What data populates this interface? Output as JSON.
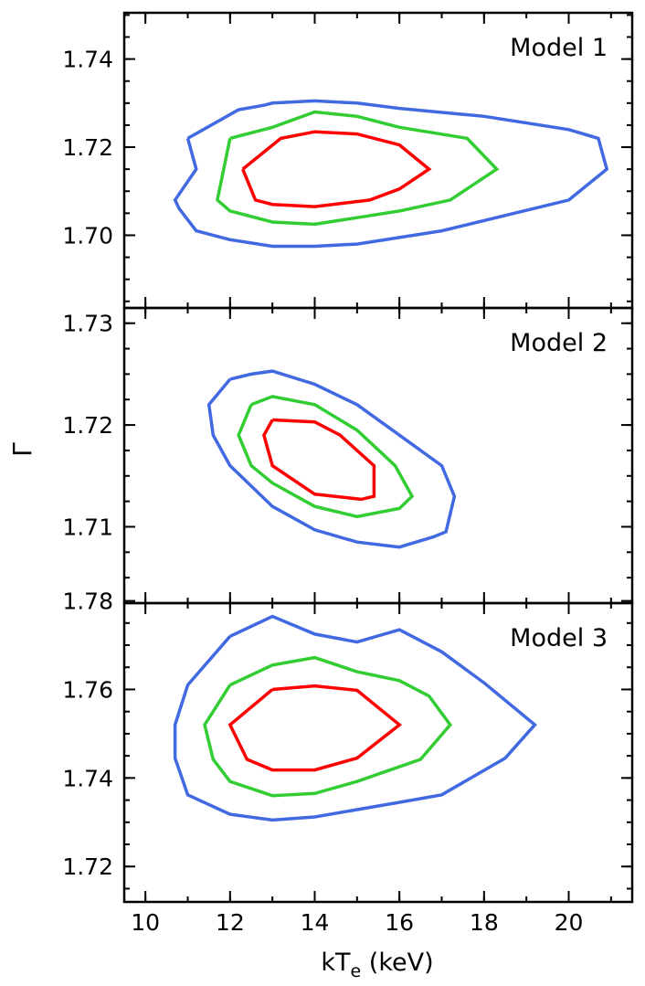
{
  "figure": {
    "xlabel": "kT",
    "xlabel_sub": "e",
    "xlabel_unit": " (keV)",
    "ylabel": "Γ"
  },
  "chart_data": [
    {
      "type": "line",
      "annotation": "Model 1",
      "xlim": [
        9.5,
        21.5
      ],
      "ylim": [
        1.6835,
        1.7505
      ],
      "xticks": [
        10,
        12,
        14,
        16,
        18,
        20
      ],
      "xtick_labels": [],
      "yticks": [
        1.7,
        1.72,
        1.74
      ],
      "ytick_labels": [
        "1.70",
        "1.72",
        "1.74"
      ],
      "minor_xstep": 1,
      "minor_ystep": 0.005,
      "series": [
        {
          "color": "#4169e1",
          "points": [
            [
              11.0,
              1.722
            ],
            [
              12.2,
              1.7285
            ],
            [
              12.8,
              1.7295
            ],
            [
              13.0,
              1.73
            ],
            [
              14.0,
              1.7305
            ],
            [
              15.0,
              1.73
            ],
            [
              16.0,
              1.7288
            ],
            [
              18.0,
              1.727
            ],
            [
              20.0,
              1.724
            ],
            [
              20.7,
              1.722
            ],
            [
              20.9,
              1.715
            ],
            [
              20.0,
              1.708
            ],
            [
              17.0,
              1.701
            ],
            [
              16.0,
              1.6995
            ],
            [
              15.0,
              1.698
            ],
            [
              14.0,
              1.6975
            ],
            [
              13.0,
              1.6975
            ],
            [
              12.0,
              1.699
            ],
            [
              11.2,
              1.701
            ],
            [
              10.8,
              1.706
            ],
            [
              10.7,
              1.708
            ],
            [
              11.2,
              1.715
            ],
            [
              11.0,
              1.722
            ]
          ]
        },
        {
          "color": "#32cd32",
          "points": [
            [
              12.0,
              1.722
            ],
            [
              13.0,
              1.7245
            ],
            [
              14.0,
              1.728
            ],
            [
              15.0,
              1.727
            ],
            [
              16.0,
              1.7245
            ],
            [
              17.6,
              1.722
            ],
            [
              18.3,
              1.715
            ],
            [
              17.2,
              1.708
            ],
            [
              16.0,
              1.7055
            ],
            [
              15.0,
              1.704
            ],
            [
              14.0,
              1.7025
            ],
            [
              13.0,
              1.703
            ],
            [
              12.0,
              1.7055
            ],
            [
              11.7,
              1.708
            ],
            [
              12.0,
              1.722
            ]
          ]
        },
        {
          "color": "#ff0000",
          "points": [
            [
              12.3,
              1.715
            ],
            [
              13.2,
              1.722
            ],
            [
              14.0,
              1.7235
            ],
            [
              15.0,
              1.723
            ],
            [
              16.0,
              1.7205
            ],
            [
              16.7,
              1.715
            ],
            [
              16.0,
              1.7105
            ],
            [
              15.3,
              1.708
            ],
            [
              14.0,
              1.7065
            ],
            [
              13.0,
              1.707
            ],
            [
              12.6,
              1.708
            ],
            [
              12.3,
              1.715
            ]
          ]
        }
      ]
    },
    {
      "type": "line",
      "annotation": "Model 2",
      "xlim": [
        9.5,
        21.5
      ],
      "ylim": [
        1.7025,
        1.7315
      ],
      "xticks": [
        10,
        12,
        14,
        16,
        18,
        20
      ],
      "xtick_labels": [],
      "yticks": [
        1.71,
        1.72,
        1.73
      ],
      "ytick_labels": [
        "1.71",
        "1.72",
        "1.73"
      ],
      "minor_xstep": 1,
      "minor_ystep": 0.0025,
      "series": [
        {
          "color": "#4169e1",
          "points": [
            [
              12.0,
              1.7245
            ],
            [
              12.5,
              1.725
            ],
            [
              13.0,
              1.7253
            ],
            [
              14.0,
              1.724
            ],
            [
              15.0,
              1.722
            ],
            [
              16.0,
              1.719
            ],
            [
              17.0,
              1.716
            ],
            [
              17.3,
              1.713
            ],
            [
              17.1,
              1.7095
            ],
            [
              16.8,
              1.709
            ],
            [
              16.0,
              1.708
            ],
            [
              15.0,
              1.7085
            ],
            [
              14.0,
              1.7097
            ],
            [
              13.0,
              1.712
            ],
            [
              12.0,
              1.716
            ],
            [
              11.6,
              1.719
            ],
            [
              11.5,
              1.722
            ],
            [
              12.0,
              1.7245
            ]
          ]
        },
        {
          "color": "#32cd32",
          "points": [
            [
              12.5,
              1.722
            ],
            [
              13.0,
              1.7228
            ],
            [
              14.0,
              1.722
            ],
            [
              15.0,
              1.7195
            ],
            [
              15.9,
              1.716
            ],
            [
              16.3,
              1.713
            ],
            [
              16.0,
              1.7118
            ],
            [
              15.0,
              1.711
            ],
            [
              14.0,
              1.712
            ],
            [
              13.0,
              1.7143
            ],
            [
              12.5,
              1.716
            ],
            [
              12.2,
              1.719
            ],
            [
              12.5,
              1.722
            ]
          ]
        },
        {
          "color": "#ff0000",
          "points": [
            [
              13.0,
              1.7205
            ],
            [
              14.0,
              1.7203
            ],
            [
              14.6,
              1.719
            ],
            [
              15.0,
              1.7175
            ],
            [
              15.4,
              1.716
            ],
            [
              15.4,
              1.713
            ],
            [
              15.1,
              1.7127
            ],
            [
              14.0,
              1.7132
            ],
            [
              13.0,
              1.716
            ],
            [
              12.9,
              1.7175
            ],
            [
              12.8,
              1.719
            ],
            [
              13.0,
              1.7205
            ]
          ]
        }
      ]
    },
    {
      "type": "line",
      "annotation": "Model 3",
      "xlim": [
        9.5,
        21.5
      ],
      "ylim": [
        1.712,
        1.7795
      ],
      "xticks": [
        10,
        12,
        14,
        16,
        18,
        20
      ],
      "xtick_labels": [
        "10",
        "12",
        "14",
        "16",
        "18",
        "20"
      ],
      "yticks": [
        1.72,
        1.74,
        1.76,
        1.78
      ],
      "ytick_labels": [
        "1.72",
        "1.74",
        "1.76",
        "1.78"
      ],
      "minor_xstep": 1,
      "minor_ystep": 0.005,
      "series": [
        {
          "color": "#4169e1",
          "points": [
            [
              12.0,
              1.772
            ],
            [
              13.0,
              1.7765
            ],
            [
              14.0,
              1.7725
            ],
            [
              15.0,
              1.7707
            ],
            [
              16.0,
              1.7735
            ],
            [
              17.0,
              1.7685
            ],
            [
              18.0,
              1.7615
            ],
            [
              19.2,
              1.752
            ],
            [
              18.5,
              1.7445
            ],
            [
              17.0,
              1.7362
            ],
            [
              16.0,
              1.7345
            ],
            [
              14.0,
              1.7312
            ],
            [
              13.0,
              1.7305
            ],
            [
              12.0,
              1.7318
            ],
            [
              11.0,
              1.7362
            ],
            [
              10.7,
              1.7445
            ],
            [
              10.7,
              1.752
            ],
            [
              11.0,
              1.761
            ],
            [
              12.0,
              1.772
            ]
          ]
        },
        {
          "color": "#32cd32",
          "points": [
            [
              12.0,
              1.761
            ],
            [
              13.0,
              1.7655
            ],
            [
              14.0,
              1.7672
            ],
            [
              15.0,
              1.764
            ],
            [
              16.0,
              1.762
            ],
            [
              16.7,
              1.7585
            ],
            [
              17.2,
              1.752
            ],
            [
              16.5,
              1.7442
            ],
            [
              15.0,
              1.7392
            ],
            [
              14.0,
              1.7365
            ],
            [
              13.0,
              1.736
            ],
            [
              12.0,
              1.7392
            ],
            [
              11.6,
              1.7442
            ],
            [
              11.4,
              1.752
            ],
            [
              12.0,
              1.761
            ]
          ]
        },
        {
          "color": "#ff0000",
          "points": [
            [
              13.0,
              1.76
            ],
            [
              14.0,
              1.7608
            ],
            [
              15.0,
              1.7598
            ],
            [
              16.0,
              1.752
            ],
            [
              15.0,
              1.7445
            ],
            [
              14.0,
              1.7418
            ],
            [
              13.0,
              1.7418
            ],
            [
              12.4,
              1.7442
            ],
            [
              12.0,
              1.752
            ],
            [
              13.0,
              1.76
            ]
          ]
        }
      ]
    }
  ]
}
